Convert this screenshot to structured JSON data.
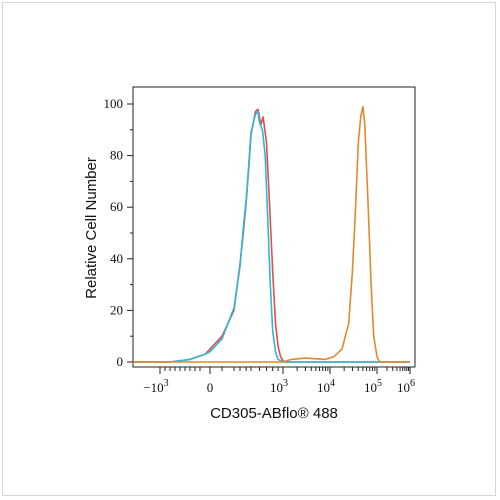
{
  "chart_data": {
    "type": "line",
    "xlabel": "CD305-ABflo® 488",
    "ylabel": "Relative Cell Number",
    "x_scale": "biexponential",
    "y_ticks": [
      0,
      20,
      40,
      60,
      80,
      100
    ],
    "ylim": [
      0,
      100
    ],
    "x_ticks": [
      {
        "value": -1000,
        "base": "−10",
        "exp": "3"
      },
      {
        "value": 0,
        "base": "0",
        "exp": ""
      },
      {
        "value": 1000,
        "base": "10",
        "exp": "3"
      },
      {
        "value": 10000,
        "base": "10",
        "exp": "4"
      },
      {
        "value": 100000,
        "base": "10",
        "exp": "5"
      },
      {
        "value": 1000000,
        "base": "10",
        "exp": "6"
      }
    ],
    "grid": false,
    "legend": "none",
    "series": [
      {
        "color": "#e0504a",
        "points": [
          [
            -2000,
            0
          ],
          [
            -800,
            0
          ],
          [
            -400,
            1
          ],
          [
            -100,
            3
          ],
          [
            0,
            5
          ],
          [
            100,
            10
          ],
          [
            200,
            20
          ],
          [
            300,
            38
          ],
          [
            350,
            50
          ],
          [
            400,
            62
          ],
          [
            450,
            75
          ],
          [
            500,
            88
          ],
          [
            550,
            97
          ],
          [
            580,
            98
          ],
          [
            620,
            92
          ],
          [
            650,
            95
          ],
          [
            700,
            85
          ],
          [
            750,
            60
          ],
          [
            800,
            35
          ],
          [
            850,
            15
          ],
          [
            900,
            6
          ],
          [
            950,
            2
          ],
          [
            1000,
            0.5
          ],
          [
            1100,
            0
          ],
          [
            1600,
            0
          ],
          [
            1000000,
            0
          ]
        ]
      },
      {
        "color": "#2fb6d6",
        "points": [
          [
            -2000,
            0
          ],
          [
            -800,
            0
          ],
          [
            -400,
            1
          ],
          [
            -100,
            3
          ],
          [
            0,
            4
          ],
          [
            100,
            9
          ],
          [
            200,
            21
          ],
          [
            300,
            37
          ],
          [
            350,
            52
          ],
          [
            400,
            63
          ],
          [
            450,
            76
          ],
          [
            500,
            89
          ],
          [
            550,
            96
          ],
          [
            580,
            97
          ],
          [
            600,
            93
          ],
          [
            640,
            90
          ],
          [
            680,
            80
          ],
          [
            720,
            55
          ],
          [
            760,
            30
          ],
          [
            800,
            12
          ],
          [
            850,
            4
          ],
          [
            900,
            1
          ],
          [
            1000,
            0
          ],
          [
            1000000,
            0
          ]
        ]
      },
      {
        "color": "#e08a2a",
        "points": [
          [
            -2000,
            0
          ],
          [
            1000,
            0
          ],
          [
            1500,
            1
          ],
          [
            3000,
            1.5
          ],
          [
            8000,
            1
          ],
          [
            12000,
            2
          ],
          [
            18000,
            5
          ],
          [
            25000,
            15
          ],
          [
            30000,
            35
          ],
          [
            35000,
            60
          ],
          [
            40000,
            85
          ],
          [
            45000,
            95
          ],
          [
            50000,
            99
          ],
          [
            55000,
            92
          ],
          [
            65000,
            60
          ],
          [
            75000,
            30
          ],
          [
            85000,
            10
          ],
          [
            100000,
            2
          ],
          [
            120000,
            0
          ],
          [
            1000000,
            0
          ]
        ]
      }
    ]
  }
}
